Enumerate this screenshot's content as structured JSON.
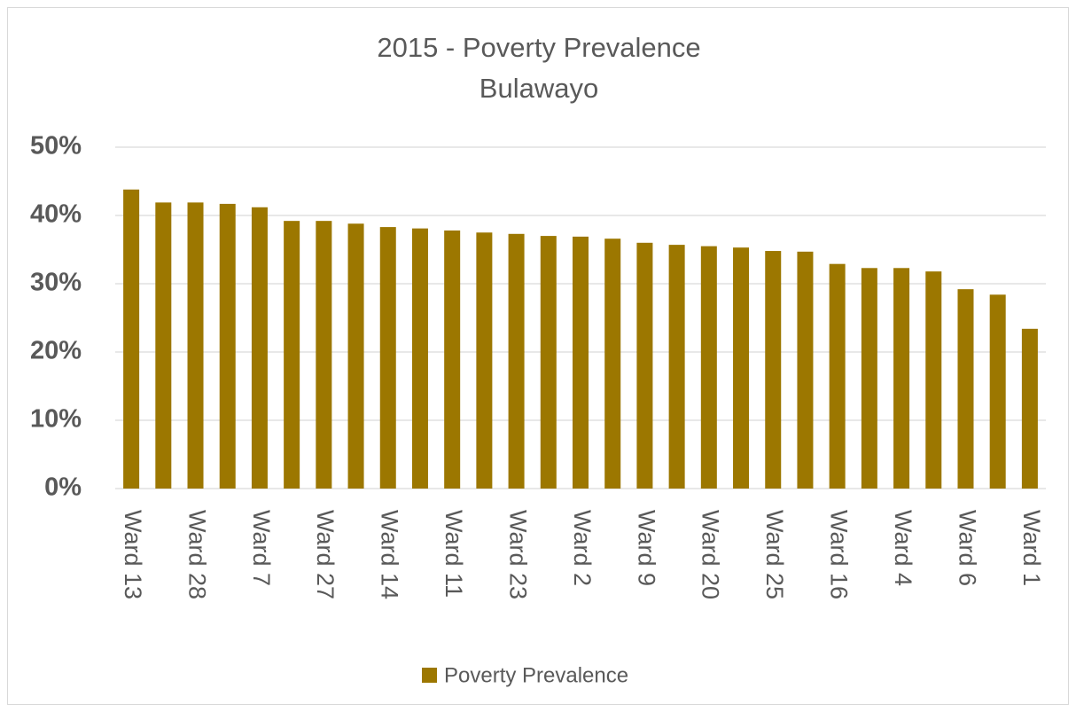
{
  "chart_data": {
    "type": "bar",
    "title": "2015 - Poverty Prevalence",
    "subtitle": "Bulawayo",
    "categories": [
      "Ward 13",
      null,
      "Ward 28",
      null,
      "Ward 7",
      null,
      "Ward 27",
      null,
      "Ward 14",
      null,
      "Ward 11",
      null,
      "Ward 23",
      null,
      "Ward 2",
      null,
      "Ward 9",
      null,
      "Ward 20",
      null,
      "Ward 25",
      null,
      "Ward 16",
      null,
      "Ward 4",
      null,
      "Ward 6",
      null,
      "Ward 1"
    ],
    "series": [
      {
        "name": "Poverty Prevalence",
        "color": "#9c7700",
        "values": [
          43.8,
          41.9,
          41.9,
          41.7,
          41.2,
          39.2,
          39.2,
          38.8,
          38.3,
          38.1,
          37.8,
          37.5,
          37.3,
          37.0,
          36.9,
          36.6,
          36.0,
          35.7,
          35.5,
          35.3,
          34.8,
          34.7,
          32.9,
          32.3,
          32.3,
          31.8,
          29.2,
          28.4,
          23.4
        ]
      }
    ],
    "ylim": [
      0,
      50
    ],
    "yticks": [
      {
        "value": 0,
        "label": "0%"
      },
      {
        "value": 10,
        "label": "10%"
      },
      {
        "value": 20,
        "label": "20%"
      },
      {
        "value": 30,
        "label": "30%"
      },
      {
        "value": 40,
        "label": "40%"
      },
      {
        "value": 50,
        "label": "50%"
      }
    ],
    "grid": true,
    "legend": "bottom"
  }
}
